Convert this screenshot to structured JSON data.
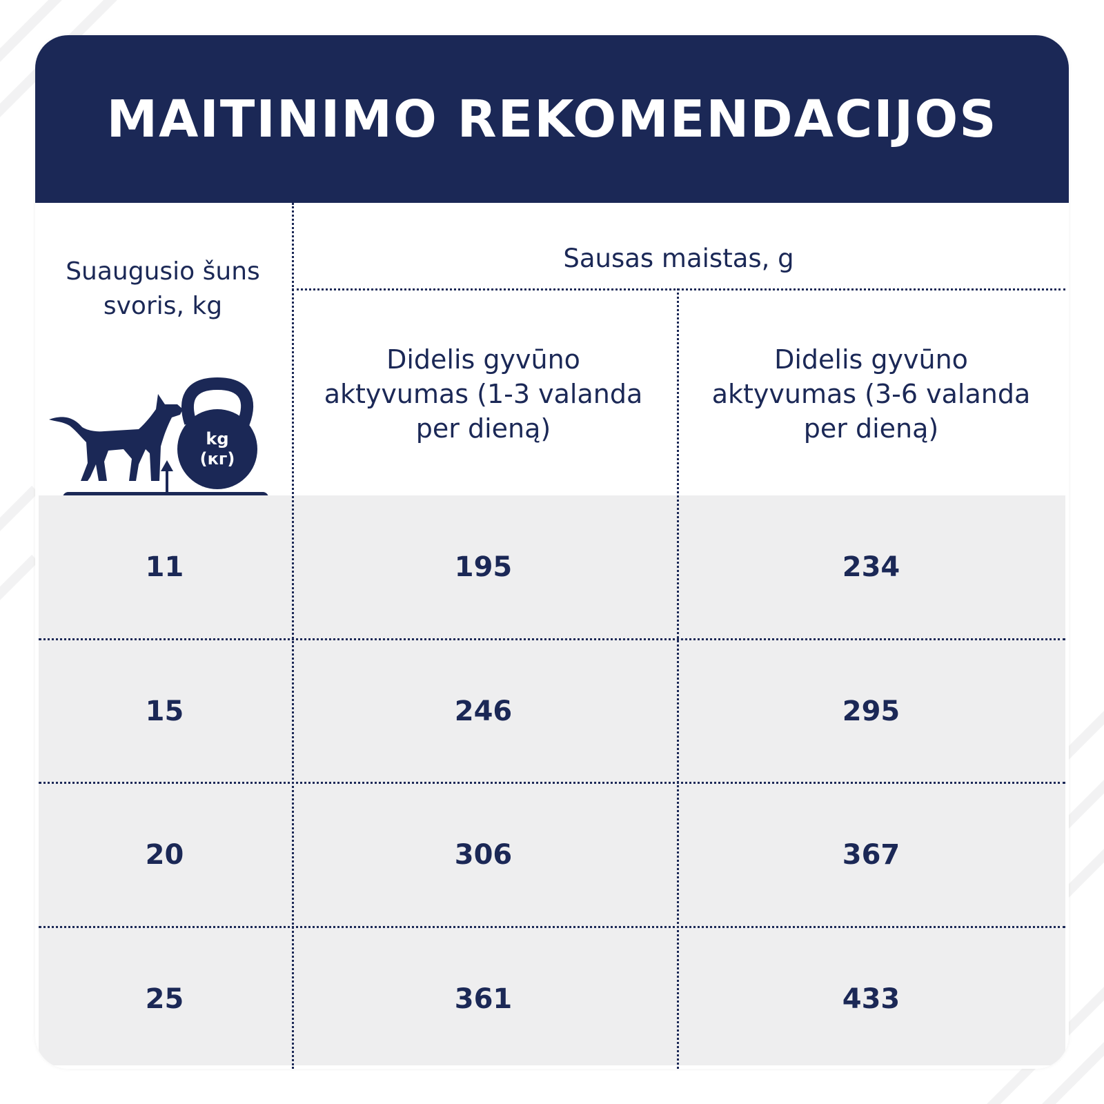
{
  "header": {
    "title": "MAITINIMO REKOMENDACIJOS"
  },
  "table": {
    "weight_header": [
      "Suaugusio šuns",
      "svoris, kg"
    ],
    "dry_food_header": "Sausas maistas, g",
    "activity_headers": [
      [
        "Didelis gyvūno",
        "aktyvumas (1-3 valanda",
        "per dieną)"
      ],
      [
        "Didelis gyvūno",
        "aktyvumas (3-6 valanda",
        "per dieną)"
      ]
    ],
    "rows": [
      {
        "weight": "11",
        "low": "195",
        "high": "234"
      },
      {
        "weight": "15",
        "low": "246",
        "high": "295"
      },
      {
        "weight": "20",
        "low": "306",
        "high": "367"
      },
      {
        "weight": "25",
        "low": "361",
        "high": "433"
      }
    ]
  },
  "icon": {
    "name": "dog-on-scale-kettlebell-icon",
    "label_1": "kg",
    "label_2": "(кг)"
  },
  "colors": {
    "navy": "#1b2856",
    "row_bg": "#eeeeef",
    "white": "#ffffff"
  }
}
